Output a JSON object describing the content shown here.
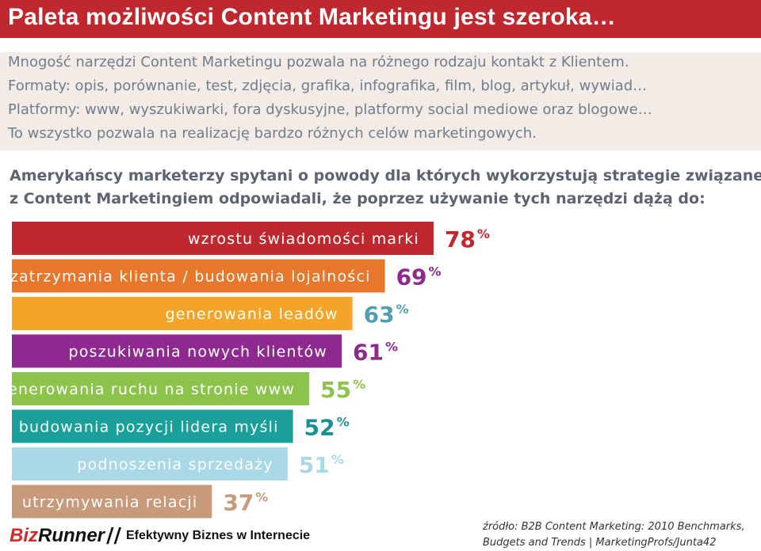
{
  "header": {
    "title": "Paleta możliwości Content Marketingu jest szeroka…"
  },
  "intro": {
    "line1": "Mnogość narzędzi Content Marketingu pozwala na różnego rodzaju kontakt z Klientem.",
    "line2": "Formaty: opis, porównanie, test, zdjęcia, grafika, infografika, film, blog, artykuł, wywiad…",
    "line3": "Platformy: www, wyszukiwarki, fora dyskusyjne, platformy social mediowe oraz blogowe…",
    "line4": "To wszystko pozwala na realizację bardzo różnych celów marketingowych."
  },
  "question": {
    "line1": "Amerykańscy marketerzy spytani o powody dla których wykorzystują strategie związane",
    "line2": "z Content Marketingiem odpowiadali, że poprzez używanie tych narzędzi dążą do:"
  },
  "chart_data": {
    "type": "bar",
    "orientation": "horizontal",
    "categories": [
      "wzrostu świadomości marki",
      "zatrzymania klienta / budowania lojalności",
      "generowania leadów",
      "poszukiwania nowych klientów",
      "generowania ruchu na stronie www",
      "budowania pozycji lidera myśli",
      "podnoszenia sprzedaży",
      "utrzymywania relacji"
    ],
    "values": [
      78,
      69,
      63,
      61,
      55,
      52,
      51,
      37
    ],
    "value_suffix": "%",
    "colors": [
      "#c0282f",
      "#e8762b",
      "#f4a428",
      "#8e2a8f",
      "#8cc34b",
      "#1a9f9a",
      "#a9d8e6",
      "#c89a7a"
    ],
    "value_colors": [
      "#c0282f",
      "#8e2a8f",
      "#4f9fb0",
      "#8e2a8f",
      "#8cc34b",
      "#1a8f93",
      "#a9d8e6",
      "#c89a7a"
    ],
    "legend": "none",
    "grid": false
  },
  "footer": {
    "logo_brand_a": "Biz",
    "logo_brand_b": "Runner",
    "logo_slash": "//",
    "logo_tagline": "Efektywny Biznes w Internecie",
    "source_line1": "źródło: B2B Content Marketing: 2010 Benchmarks,",
    "source_line2": "Budgets and Trends | MarketingProfs/Junta42"
  }
}
